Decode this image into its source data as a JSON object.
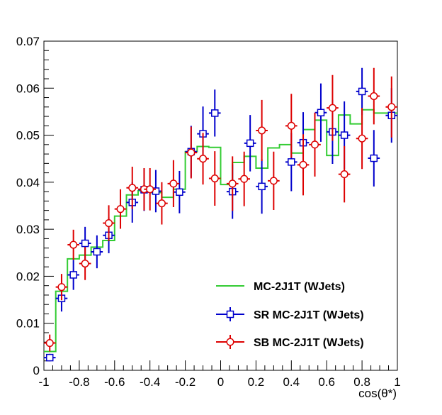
{
  "chart_data": {
    "type": "line",
    "title": "",
    "xlabel": "cos(θ*)",
    "ylabel": "",
    "xlim": [
      -1,
      1
    ],
    "ylim": [
      0,
      0.07
    ],
    "grid": false,
    "legend_position": "bottom-right",
    "x_ticks": [
      "-1",
      "-0.8",
      "-0.6",
      "-0.4",
      "-0.2",
      "0",
      "0.2",
      "0.4",
      "0.6",
      "0.8",
      "1"
    ],
    "y_ticks": [
      "0",
      "0.01",
      "0.02",
      "0.03",
      "0.04",
      "0.05",
      "0.06",
      "0.07"
    ],
    "bin_edges": [
      -1,
      -0.933,
      -0.867,
      -0.8,
      -0.733,
      -0.667,
      -0.6,
      -0.533,
      -0.467,
      -0.4,
      -0.333,
      -0.267,
      -0.2,
      -0.133,
      -0.067,
      0,
      0.067,
      0.133,
      0.2,
      0.267,
      0.333,
      0.4,
      0.467,
      0.533,
      0.6,
      0.667,
      0.733,
      0.8,
      0.867,
      0.933,
      1
    ],
    "series": [
      {
        "name": "MC-2J1T (WJets)",
        "style": "step",
        "color": "#33cc33",
        "values": [
          0.004,
          0.0168,
          0.0237,
          0.0245,
          0.0262,
          0.0276,
          0.0328,
          0.0373,
          0.0382,
          0.0378,
          0.0368,
          0.0385,
          0.0465,
          0.0476,
          0.0474,
          0.0395,
          0.0442,
          0.0455,
          0.043,
          0.0473,
          0.048,
          0.0462,
          0.0512,
          0.0532,
          0.0457,
          0.0543,
          0.0524,
          0.0554,
          0.0547,
          0.0547
        ]
      },
      {
        "name": "SR MC-2J1T (WJets)",
        "style": "points",
        "marker": "open-square",
        "color": "#0000cc",
        "values": [
          0.0027,
          0.0153,
          0.0203,
          0.027,
          0.0252,
          0.0287,
          0.0357,
          0.0384,
          0.0381,
          0.0379,
          0.0465,
          0.0503,
          0.0547,
          0.038,
          0.0483,
          0.0391,
          0.0443,
          0.0484,
          0.0548,
          0.0507,
          0.05,
          0.0593,
          0.0451,
          0.0542
        ],
        "bins_x": [
          -0.967,
          -0.9,
          -0.833,
          -0.767,
          -0.7,
          -0.633,
          -0.5,
          -0.433,
          -0.367,
          -0.233,
          -0.167,
          -0.1,
          -0.033,
          0.067,
          0.167,
          0.233,
          0.4,
          0.467,
          0.567,
          0.633,
          0.7,
          0.8,
          0.867,
          0.967
        ],
        "errors": [
          0.0008,
          0.0028,
          0.0032,
          0.0035,
          0.0035,
          0.0038,
          0.0043,
          0.0045,
          0.0045,
          0.0045,
          0.0055,
          0.0058,
          0.005,
          0.0058,
          0.006,
          0.0058,
          0.0062,
          0.0065,
          0.0062,
          0.0068,
          0.0072,
          0.005,
          0.006,
          0.0058
        ]
      },
      {
        "name": "SB MC-2J1T (WJets)",
        "style": "points",
        "marker": "open-circle",
        "color": "#dd0000",
        "values": [
          0.0058,
          0.0177,
          0.0267,
          0.0227,
          0.0313,
          0.0343,
          0.0388,
          0.0385,
          0.0385,
          0.0355,
          0.0397,
          0.0463,
          0.045,
          0.0408,
          0.0397,
          0.0407,
          0.051,
          0.0403,
          0.052,
          0.0437,
          0.048,
          0.0558,
          0.0417,
          0.0493,
          0.0583,
          0.056
        ],
        "bins_x": [
          -0.967,
          -0.9,
          -0.833,
          -0.767,
          -0.633,
          -0.567,
          -0.5,
          -0.433,
          -0.4,
          -0.333,
          -0.267,
          -0.167,
          -0.1,
          -0.033,
          0.067,
          0.133,
          0.233,
          0.3,
          0.4,
          0.467,
          0.533,
          0.633,
          0.7,
          0.8,
          0.867,
          0.967
        ],
        "errors": [
          0.0018,
          0.0028,
          0.0032,
          0.0035,
          0.0038,
          0.0042,
          0.0045,
          0.0045,
          0.0045,
          0.0045,
          0.005,
          0.0055,
          0.0055,
          0.0058,
          0.0058,
          0.0058,
          0.0065,
          0.0062,
          0.0068,
          0.0065,
          0.0068,
          0.007,
          0.006,
          0.0065,
          0.006,
          0.0065
        ]
      }
    ]
  }
}
